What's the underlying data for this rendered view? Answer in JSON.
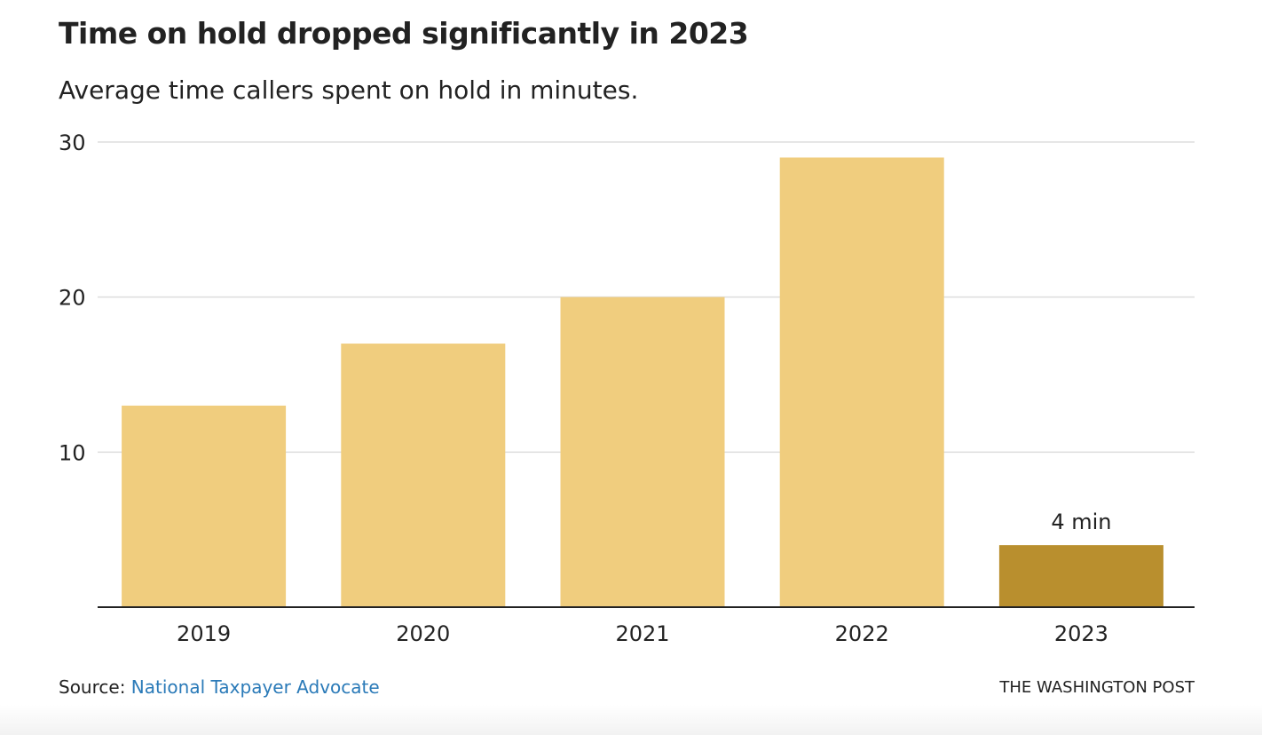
{
  "title": "Time on hold dropped significantly in 2023",
  "subtitle": "Average time callers spent on hold in minutes.",
  "source_prefix": "Source: ",
  "source_link": "National Taxpayer Advocate",
  "credit": "THE WASHINGTON POST",
  "colors": {
    "bar": "#f0cd7e",
    "highlight_bar": "#b98f2e",
    "grid": "#dddddd",
    "axis": "#222222",
    "link": "#2a7ab8"
  },
  "chart_data": {
    "type": "bar",
    "categories": [
      "2019",
      "2020",
      "2021",
      "2022",
      "2023"
    ],
    "values": [
      13,
      17,
      20,
      29,
      4
    ],
    "highlight": [
      "2023"
    ],
    "annotations": [
      {
        "category": "2023",
        "text": "4 min"
      }
    ],
    "title": "Time on hold dropped significantly in 2023",
    "subtitle": "Average time callers spent on hold in minutes.",
    "xlabel": "",
    "ylabel": "",
    "ylim": [
      0,
      30
    ],
    "yticks": [
      10,
      20,
      30
    ],
    "grid": true,
    "legend": "none"
  }
}
